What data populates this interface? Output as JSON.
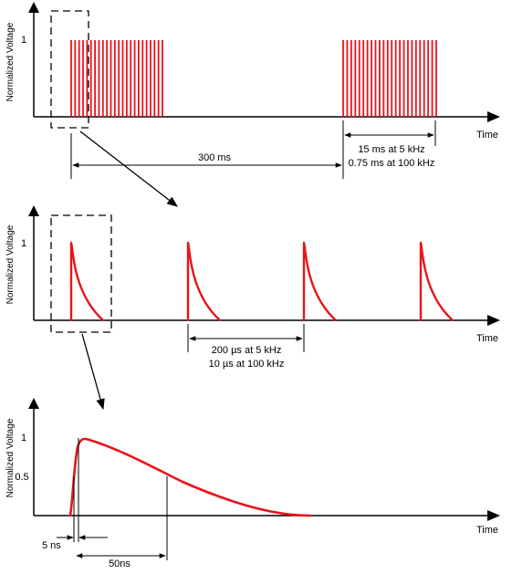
{
  "colors": {
    "signal": "#e8141c",
    "axis": "#000000",
    "background": "#ffffff"
  },
  "panel_top": {
    "y_axis_label": "Normalized Voltage",
    "y_tick": "1",
    "x_axis_label": "Time",
    "burst_period_label": "300 ms",
    "burst_duration_labels": [
      "15 ms at 5 kHz",
      "0.75 ms at 100 kHz"
    ]
  },
  "panel_middle": {
    "y_axis_label": "Normalized Voltage",
    "y_tick": "1",
    "x_axis_label": "Time",
    "pulse_period_labels": [
      "200 µs at 5 kHz",
      "10 µs at 100 kHz"
    ]
  },
  "panel_bottom": {
    "y_axis_label": "Normalized Voltage",
    "y_ticks": [
      "1",
      "0.5"
    ],
    "x_axis_label": "Time",
    "rise_time_label": "5 ns",
    "decay_time_label": "50ns"
  }
}
